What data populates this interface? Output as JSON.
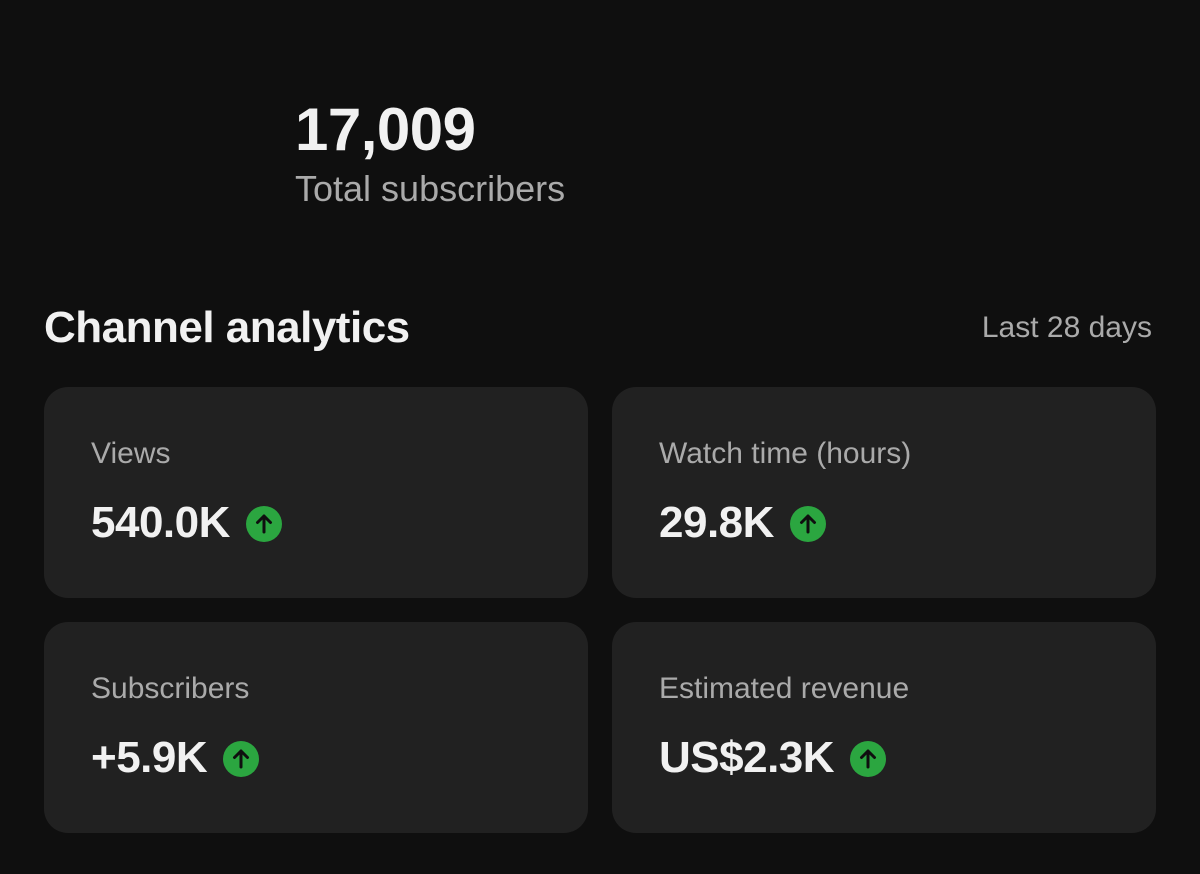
{
  "summary": {
    "total_subscribers": "17,009",
    "total_subscribers_label": "Total subscribers"
  },
  "analytics": {
    "title": "Channel analytics",
    "range": "Last 28 days",
    "accent_color": "#2ba640",
    "cards": [
      {
        "label": "Views",
        "value": "540.0K",
        "trend": "up",
        "icon": "arrow-up-icon"
      },
      {
        "label": "Watch time (hours)",
        "value": "29.8K",
        "trend": "up",
        "icon": "arrow-up-icon"
      },
      {
        "label": "Subscribers",
        "value": "+5.9K",
        "trend": "up",
        "icon": "arrow-up-icon"
      },
      {
        "label": "Estimated revenue",
        "value": "US$2.3K",
        "trend": "up",
        "icon": "arrow-up-icon"
      }
    ]
  }
}
